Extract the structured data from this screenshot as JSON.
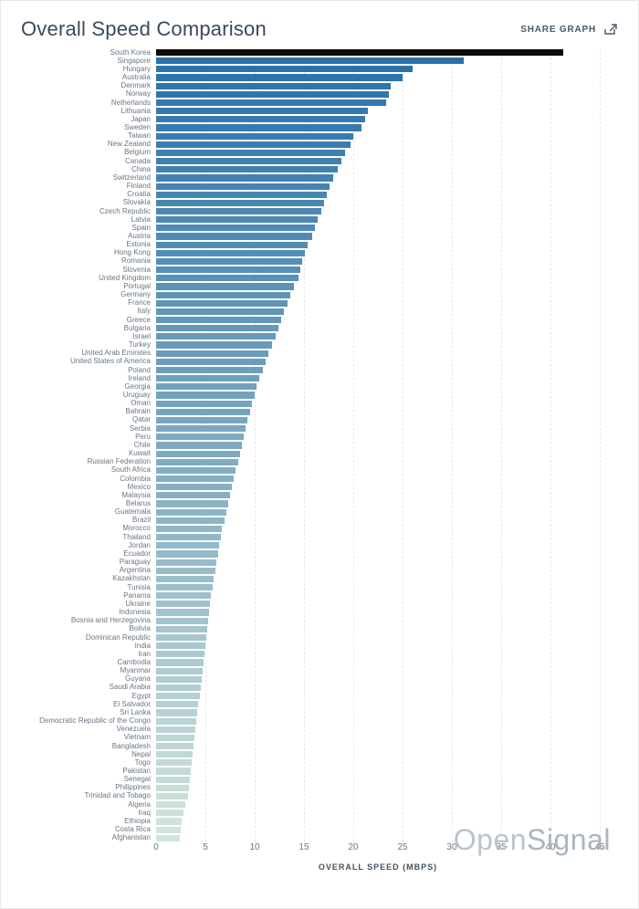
{
  "header": {
    "title": "Overall Speed Comparison",
    "share_label": "SHARE GRAPH"
  },
  "watermark": {
    "part1": "Open",
    "part2": "Signal"
  },
  "chart": {
    "type": "bar-horizontal",
    "xlabel": "OVERALL SPEED (MBPS)",
    "xmin": 0,
    "xmax": 45,
    "xtick_step": 5,
    "grid_color": "#e4e8ec",
    "label_color": "#6a7682",
    "top_color": "#0b0b0b",
    "color_from": "#2a71a8",
    "color_to": "#d3e4dc",
    "data": [
      {
        "c": "South Korea",
        "v": 41.3
      },
      {
        "c": "Singapore",
        "v": 31.2
      },
      {
        "c": "Hungary",
        "v": 26.0
      },
      {
        "c": "Australia",
        "v": 25.0
      },
      {
        "c": "Denmark",
        "v": 23.8
      },
      {
        "c": "Norway",
        "v": 23.6
      },
      {
        "c": "Netherlands",
        "v": 23.3
      },
      {
        "c": "Lithuania",
        "v": 21.5
      },
      {
        "c": "Japan",
        "v": 21.2
      },
      {
        "c": "Sweden",
        "v": 20.8
      },
      {
        "c": "Taiwan",
        "v": 20.0
      },
      {
        "c": "New Zealand",
        "v": 19.7
      },
      {
        "c": "Belgium",
        "v": 19.2
      },
      {
        "c": "Canada",
        "v": 18.8
      },
      {
        "c": "China",
        "v": 18.4
      },
      {
        "c": "Switzerland",
        "v": 18.0
      },
      {
        "c": "Finland",
        "v": 17.6
      },
      {
        "c": "Croatia",
        "v": 17.3
      },
      {
        "c": "Slovakia",
        "v": 17.0
      },
      {
        "c": "Czech Republic",
        "v": 16.8
      },
      {
        "c": "Latvia",
        "v": 16.4
      },
      {
        "c": "Spain",
        "v": 16.1
      },
      {
        "c": "Austria",
        "v": 15.8
      },
      {
        "c": "Estonia",
        "v": 15.4
      },
      {
        "c": "Hong Kong",
        "v": 15.1
      },
      {
        "c": "Romania",
        "v": 14.8
      },
      {
        "c": "Slovenia",
        "v": 14.6
      },
      {
        "c": "United Kingdom",
        "v": 14.4
      },
      {
        "c": "Portugal",
        "v": 14.0
      },
      {
        "c": "Germany",
        "v": 13.6
      },
      {
        "c": "France",
        "v": 13.3
      },
      {
        "c": "Italy",
        "v": 13.0
      },
      {
        "c": "Greece",
        "v": 12.7
      },
      {
        "c": "Bulgaria",
        "v": 12.4
      },
      {
        "c": "Israel",
        "v": 12.1
      },
      {
        "c": "Turkey",
        "v": 11.8
      },
      {
        "c": "United Arab Emirates",
        "v": 11.4
      },
      {
        "c": "United States of America",
        "v": 11.1
      },
      {
        "c": "Poland",
        "v": 10.8
      },
      {
        "c": "Ireland",
        "v": 10.5
      },
      {
        "c": "Georgia",
        "v": 10.2
      },
      {
        "c": "Uruguay",
        "v": 10.0
      },
      {
        "c": "Oman",
        "v": 9.7
      },
      {
        "c": "Bahrain",
        "v": 9.5
      },
      {
        "c": "Qatar",
        "v": 9.3
      },
      {
        "c": "Serbia",
        "v": 9.1
      },
      {
        "c": "Peru",
        "v": 8.9
      },
      {
        "c": "Chile",
        "v": 8.7
      },
      {
        "c": "Kuwait",
        "v": 8.5
      },
      {
        "c": "Russian Federation",
        "v": 8.3
      },
      {
        "c": "South Africa",
        "v": 8.1
      },
      {
        "c": "Colombia",
        "v": 7.9
      },
      {
        "c": "Mexico",
        "v": 7.7
      },
      {
        "c": "Malaysia",
        "v": 7.5
      },
      {
        "c": "Belarus",
        "v": 7.3
      },
      {
        "c": "Guatemala",
        "v": 7.1
      },
      {
        "c": "Brazil",
        "v": 6.9
      },
      {
        "c": "Morocco",
        "v": 6.7
      },
      {
        "c": "Thailand",
        "v": 6.6
      },
      {
        "c": "Jordan",
        "v": 6.4
      },
      {
        "c": "Ecuador",
        "v": 6.3
      },
      {
        "c": "Paraguay",
        "v": 6.1
      },
      {
        "c": "Argentina",
        "v": 6.0
      },
      {
        "c": "Kazakhstan",
        "v": 5.8
      },
      {
        "c": "Tunisia",
        "v": 5.7
      },
      {
        "c": "Panama",
        "v": 5.6
      },
      {
        "c": "Ukraine",
        "v": 5.5
      },
      {
        "c": "Indonesia",
        "v": 5.4
      },
      {
        "c": "Bosnia and Herzegovina",
        "v": 5.3
      },
      {
        "c": "Bolivia",
        "v": 5.2
      },
      {
        "c": "Dominican Republic",
        "v": 5.1
      },
      {
        "c": "India",
        "v": 5.0
      },
      {
        "c": "Iran",
        "v": 4.9
      },
      {
        "c": "Cambodia",
        "v": 4.8
      },
      {
        "c": "Myanmar",
        "v": 4.7
      },
      {
        "c": "Guyana",
        "v": 4.6
      },
      {
        "c": "Saudi Arabia",
        "v": 4.5
      },
      {
        "c": "Egypt",
        "v": 4.4
      },
      {
        "c": "El Salvador",
        "v": 4.3
      },
      {
        "c": "Sri Lanka",
        "v": 4.2
      },
      {
        "c": "Democratic Republic of the Congo",
        "v": 4.1
      },
      {
        "c": "Venezuela",
        "v": 4.0
      },
      {
        "c": "Vietnam",
        "v": 3.9
      },
      {
        "c": "Bangladesh",
        "v": 3.8
      },
      {
        "c": "Nepal",
        "v": 3.7
      },
      {
        "c": "Togo",
        "v": 3.6
      },
      {
        "c": "Pakistan",
        "v": 3.5
      },
      {
        "c": "Senegal",
        "v": 3.4
      },
      {
        "c": "Philippines",
        "v": 3.3
      },
      {
        "c": "Trinidad and Tobago",
        "v": 3.2
      },
      {
        "c": "Algeria",
        "v": 3.0
      },
      {
        "c": "Iraq",
        "v": 2.8
      },
      {
        "c": "Ethiopia",
        "v": 2.6
      },
      {
        "c": "Costa Rica",
        "v": 2.5
      },
      {
        "c": "Afghanistan",
        "v": 2.4
      }
    ]
  }
}
